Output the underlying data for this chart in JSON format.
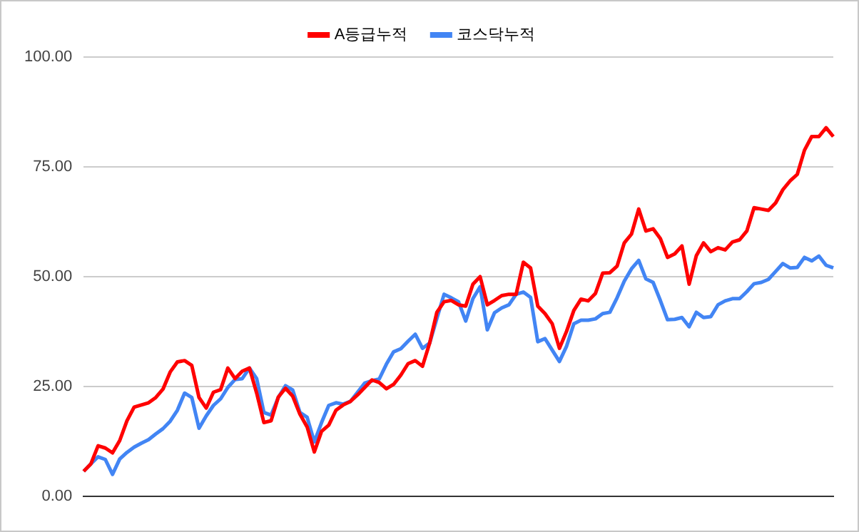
{
  "chart_data": {
    "type": "line",
    "categories": [
      null,
      null,
      null,
      null,
      null,
      null,
      null,
      null,
      null,
      null,
      null,
      null,
      null,
      null,
      null,
      null,
      null,
      null,
      null,
      null,
      null,
      null,
      null,
      null,
      null,
      null,
      null,
      null,
      null,
      null,
      null,
      null,
      null,
      null,
      null,
      null,
      null,
      null,
      null,
      null,
      null,
      null,
      null,
      null,
      null,
      null,
      null,
      null,
      null,
      null,
      null,
      null,
      null,
      null,
      null,
      null,
      null,
      null,
      null,
      null,
      null,
      null,
      null,
      null,
      null,
      null,
      null,
      null,
      null,
      null,
      null,
      null,
      null,
      null,
      null,
      null,
      null,
      null,
      null,
      null,
      null,
      null,
      null,
      null,
      null,
      null,
      null,
      null,
      null,
      null,
      null,
      null,
      null,
      null,
      null,
      null,
      null,
      null,
      null,
      null,
      null,
      null,
      null,
      null,
      null
    ],
    "ylim": [
      0,
      100
    ],
    "yticks": [
      {
        "value": 0,
        "label": "0.00"
      },
      {
        "value": 25,
        "label": "25.00"
      },
      {
        "value": 50,
        "label": "50.00"
      },
      {
        "value": 75,
        "label": "75.00"
      },
      {
        "value": 100,
        "label": "100.00"
      }
    ],
    "grid": "y",
    "legend": "top",
    "marker": "none",
    "line_style": "solid",
    "tick_labels": "y",
    "series": [
      {
        "name": "A등급누적",
        "color": "#ff0000",
        "values": [
          5.7,
          7.4,
          11.5,
          11.0,
          9.9,
          12.7,
          17.2,
          20.3,
          20.8,
          21.3,
          22.5,
          24.4,
          28.3,
          30.6,
          30.9,
          29.8,
          22.5,
          20.1,
          23.7,
          24.3,
          29.2,
          26.8,
          28.5,
          29.2,
          23.5,
          16.8,
          17.2,
          22.6,
          24.6,
          22.8,
          18.7,
          15.8,
          10.1,
          14.8,
          16.2,
          19.6,
          20.8,
          21.6,
          23.1,
          24.8,
          26.5,
          25.9,
          24.5,
          25.5,
          27.6,
          30.2,
          30.9,
          29.6,
          34.9,
          41.9,
          44.3,
          44.6,
          43.6,
          43.3,
          48.3,
          50.0,
          43.6,
          44.6,
          45.7,
          46.0,
          46.0,
          53.3,
          52.0,
          43.3,
          41.6,
          39.3,
          33.7,
          37.6,
          42.3,
          44.9,
          44.5,
          46.2,
          50.8,
          50.9,
          52.4,
          57.7,
          59.7,
          65.4,
          60.4,
          60.9,
          58.7,
          54.4,
          55.2,
          57.0,
          48.3,
          54.8,
          57.7,
          55.7,
          56.6,
          56.1,
          57.9,
          58.4,
          60.4,
          65.7,
          65.4,
          65.1,
          66.8,
          69.8,
          71.8,
          73.3,
          78.8,
          81.9,
          81.9,
          83.9,
          81.9
        ]
      },
      {
        "name": "코스닥누적",
        "color": "#4285f4",
        "values": [
          5.7,
          7.4,
          9.0,
          8.4,
          5.0,
          8.5,
          10.0,
          11.2,
          12.1,
          12.9,
          14.2,
          15.4,
          17.1,
          19.6,
          23.5,
          22.5,
          15.5,
          18.3,
          20.7,
          22.2,
          24.8,
          26.6,
          26.8,
          29.2,
          26.8,
          19.1,
          18.5,
          22.5,
          25.2,
          24.2,
          19.1,
          18.0,
          12.4,
          16.8,
          20.7,
          21.3,
          21.0,
          21.6,
          23.7,
          25.8,
          26.3,
          26.7,
          30.1,
          32.9,
          33.6,
          35.3,
          36.9,
          33.7,
          34.9,
          40.5,
          46.0,
          45.2,
          44.3,
          39.9,
          45.0,
          47.7,
          37.9,
          41.8,
          42.9,
          43.6,
          46.0,
          46.5,
          45.3,
          35.2,
          35.9,
          33.3,
          30.7,
          34.2,
          39.3,
          40.1,
          40.1,
          40.4,
          41.6,
          41.9,
          45.2,
          49.0,
          51.8,
          53.7,
          49.5,
          48.7,
          44.6,
          40.2,
          40.3,
          40.7,
          38.6,
          41.9,
          40.7,
          40.9,
          43.6,
          44.5,
          45.0,
          45.0,
          46.6,
          48.4,
          48.7,
          49.4,
          51.2,
          53.0,
          52.0,
          52.1,
          54.4,
          53.6,
          54.7,
          52.6,
          52.0
        ]
      }
    ]
  }
}
